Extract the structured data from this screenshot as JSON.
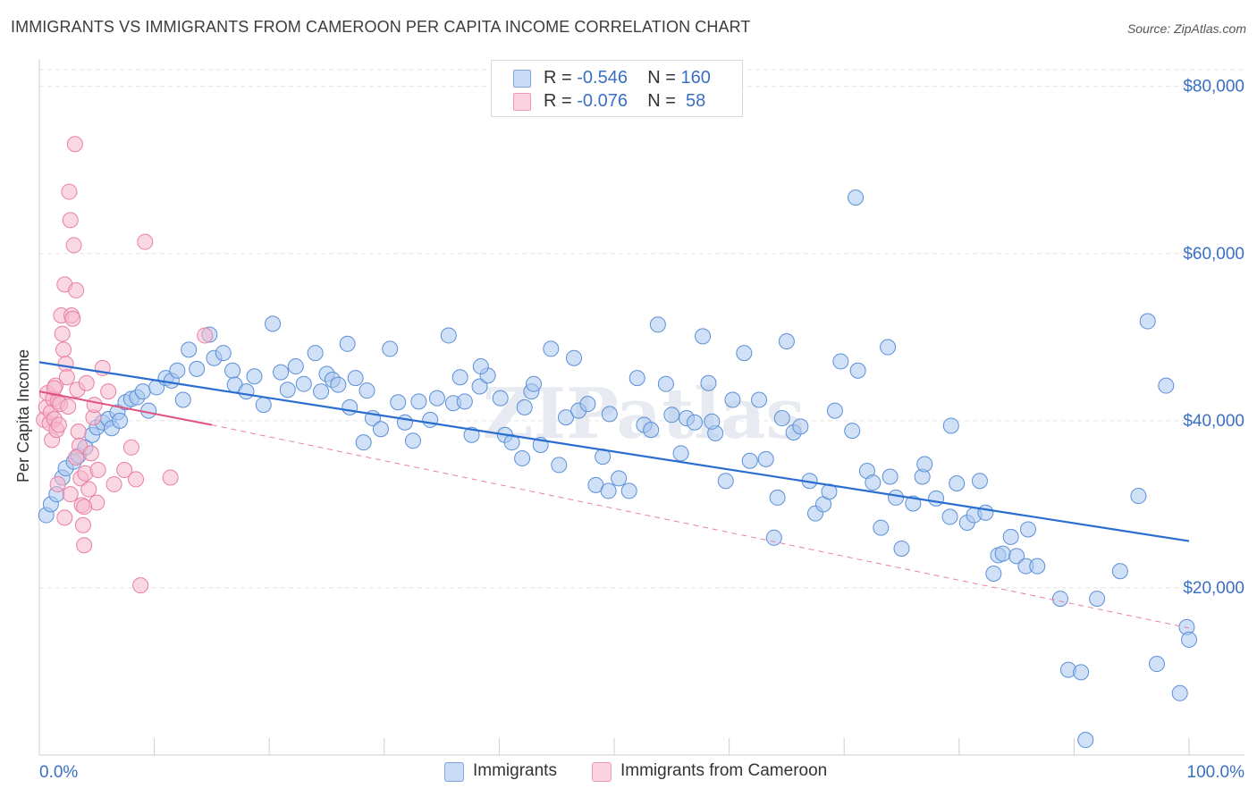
{
  "title": "IMMIGRANTS VS IMMIGRANTS FROM CAMEROON PER CAPITA INCOME CORRELATION CHART",
  "source": "Source: ZipAtlas.com",
  "watermark": "ZIPatlas",
  "legend_top": {
    "rows": [
      {
        "r_label": "R = ",
        "r_value": "-0.546",
        "n_label": "N = ",
        "n_value": "160",
        "color": "#a9c8f0"
      },
      {
        "r_label": "R = ",
        "r_value": "-0.076",
        "n_label": "N = ",
        "n_value": " 58",
        "color": "#f6b8cc"
      }
    ]
  },
  "legend_bottom": [
    {
      "label": "Immigrants",
      "color": "#a9c8f0"
    },
    {
      "label": "Immigrants from Cameroon",
      "color": "#f6b8cc"
    }
  ],
  "chart_data": {
    "type": "scatter",
    "xlabel": "",
    "ylabel": "Per Capita Income",
    "x_tick_labels": [
      "0.0%",
      "100.0%"
    ],
    "y_tick_labels": [
      "$20,000",
      "$40,000",
      "$60,000",
      "$80,000"
    ],
    "y_ticks": [
      20000,
      40000,
      60000,
      80000
    ],
    "xlim": [
      0,
      100
    ],
    "ylim": [
      0,
      82000
    ],
    "grid": true,
    "series": [
      {
        "name": "Immigrants",
        "color": "#5b8fd6",
        "fill": "#a9c8f0",
        "trend": {
          "x": [
            0,
            100
          ],
          "y": [
            47000,
            25600
          ]
        },
        "points": [
          [
            0.6,
            28700
          ],
          [
            1,
            30000
          ],
          [
            1.5,
            31200
          ],
          [
            2,
            33200
          ],
          [
            2.3,
            34300
          ],
          [
            3,
            35100
          ],
          [
            3.4,
            35800
          ],
          [
            4,
            36800
          ],
          [
            4.6,
            38300
          ],
          [
            5,
            39200
          ],
          [
            5.5,
            39800
          ],
          [
            6,
            40200
          ],
          [
            6.3,
            39100
          ],
          [
            6.8,
            41000
          ],
          [
            7,
            40000
          ],
          [
            7.5,
            42200
          ],
          [
            8,
            42600
          ],
          [
            8.5,
            42800
          ],
          [
            9,
            43500
          ],
          [
            9.5,
            41200
          ],
          [
            10.2,
            44000
          ],
          [
            11,
            45100
          ],
          [
            11.5,
            44800
          ],
          [
            12,
            46000
          ],
          [
            12.5,
            42500
          ],
          [
            13,
            48500
          ],
          [
            13.7,
            46200
          ],
          [
            14.8,
            50300
          ],
          [
            15.2,
            47500
          ],
          [
            16,
            48100
          ],
          [
            16.8,
            46000
          ],
          [
            17,
            44300
          ],
          [
            18,
            43500
          ],
          [
            18.7,
            45300
          ],
          [
            19.5,
            41900
          ],
          [
            20.3,
            51600
          ],
          [
            21,
            45800
          ],
          [
            21.6,
            43700
          ],
          [
            22.3,
            46500
          ],
          [
            23,
            44400
          ],
          [
            24,
            48100
          ],
          [
            24.5,
            43500
          ],
          [
            25,
            45600
          ],
          [
            25.5,
            44900
          ],
          [
            26,
            44300
          ],
          [
            26.8,
            49200
          ],
          [
            27,
            41600
          ],
          [
            27.5,
            45100
          ],
          [
            28.5,
            43600
          ],
          [
            28.2,
            37400
          ],
          [
            29,
            40300
          ],
          [
            29.7,
            39000
          ],
          [
            30.5,
            48600
          ],
          [
            31.2,
            42200
          ],
          [
            31.8,
            39800
          ],
          [
            32.5,
            37600
          ],
          [
            33,
            42300
          ],
          [
            34,
            40100
          ],
          [
            34.6,
            42700
          ],
          [
            36,
            42100
          ],
          [
            35.6,
            50200
          ],
          [
            36.6,
            45200
          ],
          [
            37,
            42300
          ],
          [
            37.6,
            38300
          ],
          [
            38.3,
            44100
          ],
          [
            39,
            45400
          ],
          [
            38.4,
            46500
          ],
          [
            40.1,
            42700
          ],
          [
            40.5,
            38300
          ],
          [
            41.1,
            37400
          ],
          [
            42,
            35500
          ],
          [
            42.8,
            43500
          ],
          [
            43,
            44400
          ],
          [
            43.6,
            37100
          ],
          [
            44.5,
            48600
          ],
          [
            45.2,
            34700
          ],
          [
            45.8,
            40400
          ],
          [
            46.5,
            47500
          ],
          [
            46.9,
            41200
          ],
          [
            47.7,
            42000
          ],
          [
            48.4,
            32300
          ],
          [
            49,
            35700
          ],
          [
            49.6,
            40800
          ],
          [
            50.4,
            33100
          ],
          [
            51.3,
            31600
          ],
          [
            52,
            45100
          ],
          [
            52.6,
            39500
          ],
          [
            53.2,
            38900
          ],
          [
            53.8,
            51500
          ],
          [
            54.5,
            44400
          ],
          [
            55,
            40700
          ],
          [
            55.8,
            36100
          ],
          [
            56.3,
            40300
          ],
          [
            57,
            39800
          ],
          [
            57.7,
            50100
          ],
          [
            58.2,
            44500
          ],
          [
            58.8,
            38500
          ],
          [
            59.7,
            32800
          ],
          [
            60.3,
            42500
          ],
          [
            61.3,
            48100
          ],
          [
            61.8,
            35200
          ],
          [
            62.6,
            42500
          ],
          [
            63.2,
            35400
          ],
          [
            63.9,
            26000
          ],
          [
            64.2,
            30800
          ],
          [
            65,
            49500
          ],
          [
            65.6,
            38600
          ],
          [
            66.2,
            39300
          ],
          [
            67,
            32800
          ],
          [
            67.5,
            28900
          ],
          [
            68.2,
            30000
          ],
          [
            68.7,
            31500
          ],
          [
            69.2,
            41200
          ],
          [
            69.7,
            47100
          ],
          [
            70.7,
            38800
          ],
          [
            71.2,
            46000
          ],
          [
            72,
            34000
          ],
          [
            72.5,
            32600
          ],
          [
            73.2,
            27200
          ],
          [
            73.8,
            48800
          ],
          [
            74,
            33300
          ],
          [
            74.5,
            30800
          ],
          [
            75,
            24700
          ],
          [
            76,
            30100
          ],
          [
            76.8,
            33300
          ],
          [
            77,
            34800
          ],
          [
            78,
            30700
          ],
          [
            79.2,
            28500
          ],
          [
            79.3,
            39400
          ],
          [
            79.8,
            32500
          ],
          [
            80.7,
            27800
          ],
          [
            81.3,
            28700
          ],
          [
            81.8,
            32800
          ],
          [
            82.3,
            29000
          ],
          [
            83,
            21700
          ],
          [
            83.4,
            23900
          ],
          [
            83.8,
            24100
          ],
          [
            84.5,
            26100
          ],
          [
            85,
            23800
          ],
          [
            85.8,
            22600
          ],
          [
            86.8,
            22600
          ],
          [
            88.8,
            18700
          ],
          [
            89.5,
            10200
          ],
          [
            90.6,
            9900
          ],
          [
            91,
            1800
          ],
          [
            92,
            18700
          ],
          [
            95.6,
            31000
          ],
          [
            96.4,
            51900
          ],
          [
            98,
            44200
          ],
          [
            99.2,
            7400
          ],
          [
            99.8,
            15300
          ],
          [
            97.2,
            10900
          ],
          [
            100,
            13800
          ],
          [
            71,
            66700
          ],
          [
            42.2,
            41600
          ],
          [
            49.5,
            31600
          ],
          [
            58.5,
            39900
          ],
          [
            64.6,
            40300
          ],
          [
            86,
            27000
          ],
          [
            94,
            22000
          ]
        ]
      },
      {
        "name": "Immigrants from Cameroon",
        "color": "#e97fa2",
        "fill": "#f6b8cc",
        "trend": {
          "x": [
            0,
            15
          ],
          "y": [
            43500,
            39500
          ]
        },
        "trend_ext": {
          "x": [
            15,
            100
          ],
          "y": [
            39500,
            15200
          ]
        },
        "points": [
          [
            0.4,
            40100
          ],
          [
            0.6,
            41600
          ],
          [
            0.7,
            43300
          ],
          [
            0.9,
            39700
          ],
          [
            1,
            41000
          ],
          [
            1.1,
            37700
          ],
          [
            1.2,
            42600
          ],
          [
            1.3,
            40200
          ],
          [
            1.4,
            44200
          ],
          [
            1.5,
            38900
          ],
          [
            1.6,
            42300
          ],
          [
            1.7,
            39500
          ],
          [
            1.8,
            42000
          ],
          [
            1.9,
            52600
          ],
          [
            2,
            50400
          ],
          [
            2.1,
            48500
          ],
          [
            2.2,
            56300
          ],
          [
            2.3,
            46800
          ],
          [
            2.4,
            45200
          ],
          [
            2.5,
            41700
          ],
          [
            2.6,
            67400
          ],
          [
            2.7,
            64000
          ],
          [
            2.8,
            52600
          ],
          [
            2.9,
            52200
          ],
          [
            3,
            61000
          ],
          [
            3.1,
            73100
          ],
          [
            3.2,
            55600
          ],
          [
            3.3,
            43700
          ],
          [
            3.4,
            38700
          ],
          [
            3.5,
            37000
          ],
          [
            3.6,
            33100
          ],
          [
            3.7,
            29900
          ],
          [
            3.8,
            27500
          ],
          [
            3.9,
            25100
          ],
          [
            4,
            33700
          ],
          [
            4.1,
            44500
          ],
          [
            4.3,
            31800
          ],
          [
            4.5,
            36100
          ],
          [
            4.7,
            40400
          ],
          [
            4.8,
            41900
          ],
          [
            5,
            30200
          ],
          [
            5.1,
            34100
          ],
          [
            5.5,
            46300
          ],
          [
            6,
            43500
          ],
          [
            6.5,
            32400
          ],
          [
            7.4,
            34100
          ],
          [
            8,
            36800
          ],
          [
            8.4,
            33000
          ],
          [
            8.8,
            20300
          ],
          [
            9.2,
            61400
          ],
          [
            11.4,
            33200
          ],
          [
            14.4,
            50200
          ],
          [
            2.2,
            28400
          ],
          [
            1.6,
            32400
          ],
          [
            2.7,
            31200
          ],
          [
            3.2,
            35600
          ],
          [
            3.9,
            29700
          ],
          [
            1.3,
            43900
          ]
        ]
      }
    ]
  }
}
